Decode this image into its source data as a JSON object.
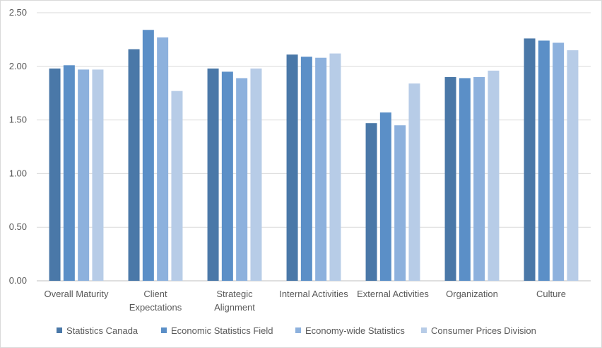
{
  "chart_data": {
    "type": "bar",
    "title": "",
    "xlabel": "",
    "ylabel": "",
    "ylim": [
      0,
      2.5
    ],
    "yticks": [
      "0.00",
      "0.50",
      "1.00",
      "1.50",
      "2.00",
      "2.50"
    ],
    "grid": true,
    "legend_position": "bottom",
    "categories": [
      [
        "Overall Maturity"
      ],
      [
        "Client",
        "Expectations"
      ],
      [
        "Strategic",
        "Alignment"
      ],
      [
        "Internal Activities"
      ],
      [
        "External Activities"
      ],
      [
        "Organization"
      ],
      [
        "Culture"
      ]
    ],
    "series": [
      {
        "name": "Statistics Canada",
        "color": "#4a78a8",
        "values": [
          1.98,
          2.16,
          1.98,
          2.11,
          1.47,
          1.9,
          2.26
        ]
      },
      {
        "name": "Economic Statistics Field",
        "color": "#5b8fc7",
        "values": [
          2.01,
          2.34,
          1.95,
          2.09,
          1.57,
          1.89,
          2.24
        ]
      },
      {
        "name": "Economy-wide Statistics",
        "color": "#8db1dd",
        "values": [
          1.97,
          2.27,
          1.89,
          2.08,
          1.45,
          1.9,
          2.22
        ]
      },
      {
        "name": "Consumer Prices Division",
        "color": "#b7cce7",
        "values": [
          1.97,
          1.77,
          1.98,
          2.12,
          1.84,
          1.96,
          2.15
        ]
      }
    ]
  }
}
